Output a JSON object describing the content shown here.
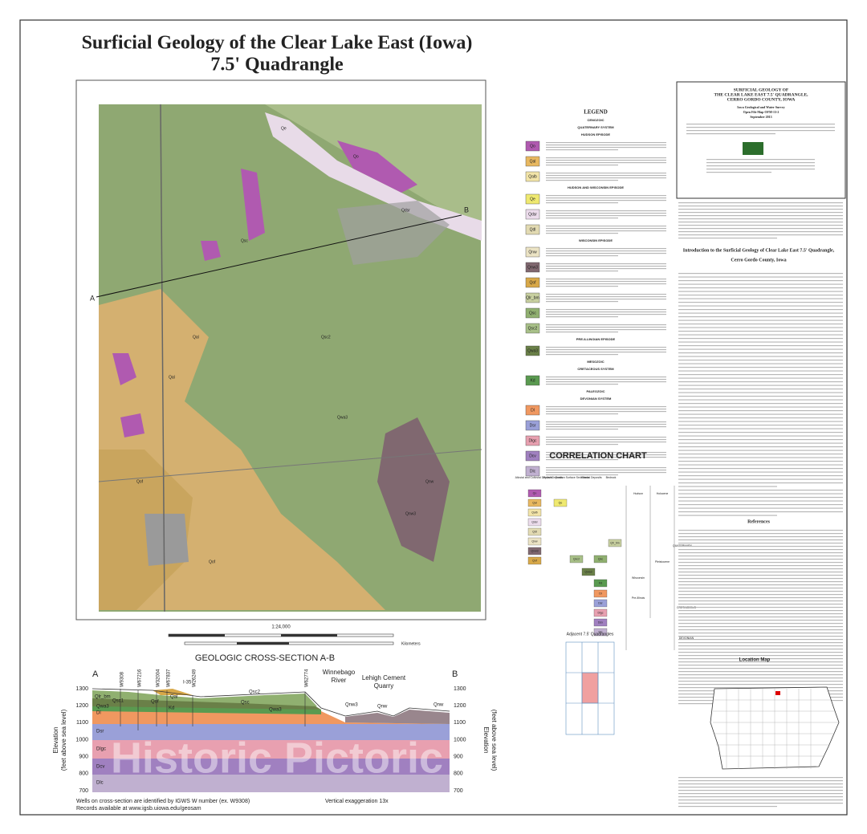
{
  "title": [
    "Surficial Geology of the Clear Lake East (Iowa)",
    "7.5' Quadrangle"
  ],
  "map": {
    "section_ends": [
      "A",
      "B"
    ],
    "labels": [
      "Qo",
      "Qal",
      "Qe",
      "Qdsr",
      "Qof",
      "Qsc",
      "Qsc2",
      "Qnw",
      "Qnw3",
      "Qwa3",
      "Qal",
      "Qof"
    ]
  },
  "scale": {
    "ratio": "1:24,000",
    "units": "Kilometers"
  },
  "legend": {
    "title": "LEGEND",
    "items": [
      {
        "heading": "CENOZOIC"
      },
      {
        "heading": "QUATERNARY SYSTEM"
      },
      {
        "heading": "HUDSON EPISODE"
      },
      {
        "code": "Qo",
        "color": "#b05ab0"
      },
      {
        "code": "Qal",
        "color": "#e8b860"
      },
      {
        "code": "Qalb",
        "color": "#f2e4a8"
      },
      {
        "heading": "HUDSON AND WISCONSIN EPISODE"
      },
      {
        "code": "Qe",
        "color": "#efe970"
      },
      {
        "code": "Qdsr",
        "color": "#ecdcec"
      },
      {
        "code": "Qdl",
        "color": "#e2dab2"
      },
      {
        "heading": "WISCONSIN EPISODE"
      },
      {
        "code": "Qnw",
        "color": "#ebe3c4"
      },
      {
        "code": "Qnw3",
        "color": "#806870"
      },
      {
        "code": "Qof",
        "color": "#d8a848"
      },
      {
        "code": "Qlr_bm",
        "color": "#c8d0a0"
      },
      {
        "code": "Qsc",
        "color": "#90b070"
      },
      {
        "code": "Qsc2",
        "color": "#a8c088"
      },
      {
        "heading": "PRE-ILLINOIAN EPISODE"
      },
      {
        "code": "Qwa3",
        "color": "#6a8048"
      },
      {
        "heading": "MESOZOIC"
      },
      {
        "heading": "CRETACEOUS SYSTEM"
      },
      {
        "code": "Kd",
        "color": "#5a9a50"
      },
      {
        "heading": "PALEOZOIC"
      },
      {
        "heading": "DEVONIAN SYSTEM"
      },
      {
        "code": "Dl",
        "color": "#f09860"
      },
      {
        "code": "Dsr",
        "color": "#9aa0d8"
      },
      {
        "code": "Dlgc",
        "color": "#e8a0b0"
      },
      {
        "code": "Dcv",
        "color": "#a080c0"
      },
      {
        "code": "Dlc",
        "color": "#c0b0d0"
      }
    ]
  },
  "correlation": {
    "title": "CORRELATION CHART",
    "columns": [
      "Alluvial and Colluvial Deposits",
      "Eolian Deposits",
      "Erosion Surface Sediments",
      "Glacial Deposits",
      "Bedrock"
    ],
    "time": [
      "Hudson",
      "Holocene",
      "Wisconsin",
      "Pleistocene",
      "Pre-Illinois",
      "QUATERNARY",
      "CRETACEOUS",
      "DEVONIAN"
    ]
  },
  "info": {
    "lines": [
      "SURFICIAL GEOLOGY OF",
      "THE CLEAR LAKE EAST 7.5' QUADRANGLE,",
      "CERRO GORDO COUNTY, IOWA",
      "Iowa Geological and Water Survey",
      "Open File Map OFM-13-2",
      "September 2013"
    ],
    "intro_heading": [
      "Introduction to the Surficial Geology of Clear Lake East 7.5' Quadrangle,",
      "Cerro Gordo County, Iowa"
    ],
    "references": "References"
  },
  "cross_section": {
    "title": "GEOLOGIC CROSS-SECTION  A-B",
    "ends": [
      "A",
      "B"
    ],
    "axis_label": [
      "Elevation",
      "(feet above sea level)"
    ],
    "ticks": [
      1300,
      1200,
      1100,
      1000,
      900,
      800,
      700
    ],
    "wells": [
      "W9308",
      "W67216",
      "W32004",
      "W67837",
      "I-35",
      "W26249",
      "W62774"
    ],
    "features": [
      "Winnebago",
      "River",
      "Lehigh Cement",
      "Quarry"
    ],
    "units": [
      "Qlr_bm",
      "Qsc1",
      "Qwa3",
      "Qof",
      "Qal",
      "Kd",
      "Qsc2",
      "Qsc",
      "Qwa3",
      "Qnw3",
      "Qnw",
      "Qnw",
      "Dl",
      "Dsr",
      "Dlgc",
      "Dcv",
      "Dlc"
    ],
    "notes": [
      "Wells on cross-section are identified by IGWS W number (ex. W9308)",
      "Records available at www.igsb.uiowa.edu/geosam"
    ],
    "exaggeration": "Vertical exaggeration 13x"
  },
  "adjacent": "Adjacent 7.5' Quadrangles",
  "location": "Location Map",
  "watermark": "Historic Pictoric"
}
